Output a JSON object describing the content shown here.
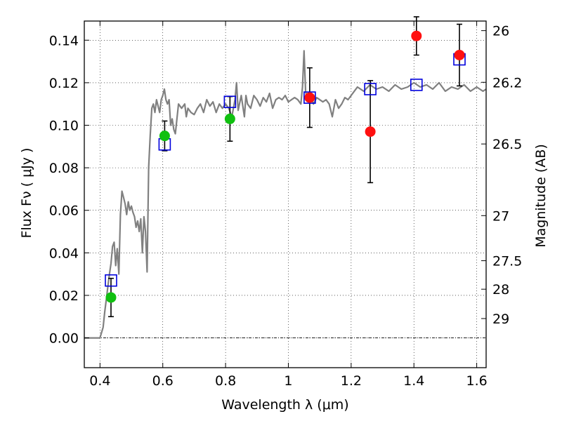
{
  "chart_data": {
    "type": "scatter",
    "xlabel": "Wavelength  λ (μm)",
    "ylabel": "Flux  Fν  ( μJy )",
    "ylabel_right": "Magnitude (AB)",
    "xlim": [
      0.35,
      1.63
    ],
    "ylim": [
      -0.014,
      0.149
    ],
    "x_ticks": [
      0.4,
      0.6,
      0.8,
      1.0,
      1.2,
      1.4,
      1.6
    ],
    "x_tick_labels": [
      "0.4",
      "0.6",
      "0.8",
      "1",
      "1.2",
      "1.4",
      "1.6"
    ],
    "y_ticks": [
      0.0,
      0.02,
      0.04,
      0.06,
      0.08,
      0.1,
      0.12,
      0.14
    ],
    "y_tick_labels": [
      "0.00",
      "0.02",
      "0.04",
      "0.06",
      "0.08",
      "0.10",
      "0.12",
      "0.14"
    ],
    "right_ticks": [
      {
        "label": "26",
        "flux": 0.1445
      },
      {
        "label": "26.2",
        "flux": 0.1202
      },
      {
        "label": "26.5",
        "flux": 0.0912
      },
      {
        "label": "27",
        "flux": 0.0575
      },
      {
        "label": "27.5",
        "flux": 0.0363
      },
      {
        "label": "28",
        "flux": 0.0229
      },
      {
        "label": "29",
        "flux": 0.0091
      }
    ],
    "grid": true,
    "zero_line": 0.0,
    "colors": {
      "model": "#808080",
      "green": "#10c010",
      "red": "#ff1010",
      "square": "#0000dd",
      "errorbar": "#000000"
    },
    "model_spectrum": {
      "x": [
        0.35,
        0.4,
        0.41,
        0.415,
        0.42,
        0.425,
        0.43,
        0.435,
        0.44,
        0.445,
        0.45,
        0.455,
        0.46,
        0.465,
        0.47,
        0.475,
        0.48,
        0.485,
        0.49,
        0.495,
        0.5,
        0.505,
        0.51,
        0.515,
        0.52,
        0.525,
        0.53,
        0.535,
        0.54,
        0.545,
        0.55,
        0.555,
        0.56,
        0.565,
        0.57,
        0.575,
        0.58,
        0.59,
        0.595,
        0.6,
        0.605,
        0.61,
        0.615,
        0.62,
        0.625,
        0.63,
        0.635,
        0.64,
        0.65,
        0.66,
        0.67,
        0.675,
        0.68,
        0.69,
        0.7,
        0.71,
        0.72,
        0.73,
        0.74,
        0.75,
        0.76,
        0.77,
        0.78,
        0.79,
        0.8,
        0.81,
        0.82,
        0.83,
        0.835,
        0.84,
        0.85,
        0.86,
        0.865,
        0.87,
        0.88,
        0.89,
        0.9,
        0.91,
        0.92,
        0.93,
        0.94,
        0.95,
        0.96,
        0.97,
        0.98,
        0.99,
        1.0,
        1.01,
        1.02,
        1.03,
        1.04,
        1.045,
        1.05,
        1.055,
        1.06,
        1.07,
        1.08,
        1.09,
        1.1,
        1.11,
        1.12,
        1.13,
        1.14,
        1.15,
        1.16,
        1.17,
        1.18,
        1.19,
        1.2,
        1.22,
        1.24,
        1.26,
        1.28,
        1.3,
        1.32,
        1.34,
        1.36,
        1.38,
        1.4,
        1.42,
        1.44,
        1.46,
        1.48,
        1.5,
        1.52,
        1.54,
        1.56,
        1.58,
        1.6,
        1.62,
        1.63
      ],
      "y": [
        0.0,
        0.0,
        0.005,
        0.012,
        0.018,
        0.024,
        0.03,
        0.035,
        0.043,
        0.045,
        0.034,
        0.042,
        0.03,
        0.058,
        0.069,
        0.066,
        0.063,
        0.058,
        0.064,
        0.06,
        0.062,
        0.059,
        0.057,
        0.052,
        0.055,
        0.05,
        0.056,
        0.04,
        0.057,
        0.05,
        0.031,
        0.08,
        0.095,
        0.108,
        0.11,
        0.106,
        0.112,
        0.106,
        0.112,
        0.114,
        0.117,
        0.112,
        0.11,
        0.112,
        0.1,
        0.103,
        0.098,
        0.096,
        0.11,
        0.108,
        0.11,
        0.104,
        0.108,
        0.106,
        0.105,
        0.108,
        0.11,
        0.106,
        0.112,
        0.109,
        0.111,
        0.106,
        0.11,
        0.108,
        0.11,
        0.108,
        0.104,
        0.112,
        0.12,
        0.107,
        0.114,
        0.104,
        0.114,
        0.11,
        0.108,
        0.114,
        0.112,
        0.109,
        0.113,
        0.111,
        0.115,
        0.108,
        0.112,
        0.113,
        0.112,
        0.114,
        0.111,
        0.112,
        0.113,
        0.112,
        0.11,
        0.118,
        0.135,
        0.116,
        0.112,
        0.114,
        0.11,
        0.113,
        0.112,
        0.111,
        0.112,
        0.11,
        0.104,
        0.112,
        0.108,
        0.11,
        0.113,
        0.112,
        0.114,
        0.118,
        0.116,
        0.119,
        0.117,
        0.118,
        0.116,
        0.119,
        0.117,
        0.118,
        0.12,
        0.118,
        0.119,
        0.117,
        0.12,
        0.116,
        0.118,
        0.117,
        0.119,
        0.116,
        0.118,
        0.116,
        0.117
      ]
    },
    "squares": [
      {
        "x": 0.435,
        "y": 0.027
      },
      {
        "x": 0.606,
        "y": 0.091
      },
      {
        "x": 0.814,
        "y": 0.111
      },
      {
        "x": 1.068,
        "y": 0.113
      },
      {
        "x": 1.261,
        "y": 0.117
      },
      {
        "x": 1.408,
        "y": 0.119
      },
      {
        "x": 1.545,
        "y": 0.131
      }
    ],
    "green_points": [
      {
        "x": 0.435,
        "y": 0.019,
        "err": 0.009
      },
      {
        "x": 0.606,
        "y": 0.095,
        "err": 0.007
      },
      {
        "x": 0.814,
        "y": 0.103,
        "err": 0.0105
      }
    ],
    "red_points": [
      {
        "x": 1.068,
        "y": 0.113,
        "err": 0.014
      },
      {
        "x": 1.261,
        "y": 0.097,
        "err": 0.024
      },
      {
        "x": 1.408,
        "y": 0.142,
        "err": 0.009
      },
      {
        "x": 1.545,
        "y": 0.133,
        "err": 0.0145
      }
    ]
  }
}
